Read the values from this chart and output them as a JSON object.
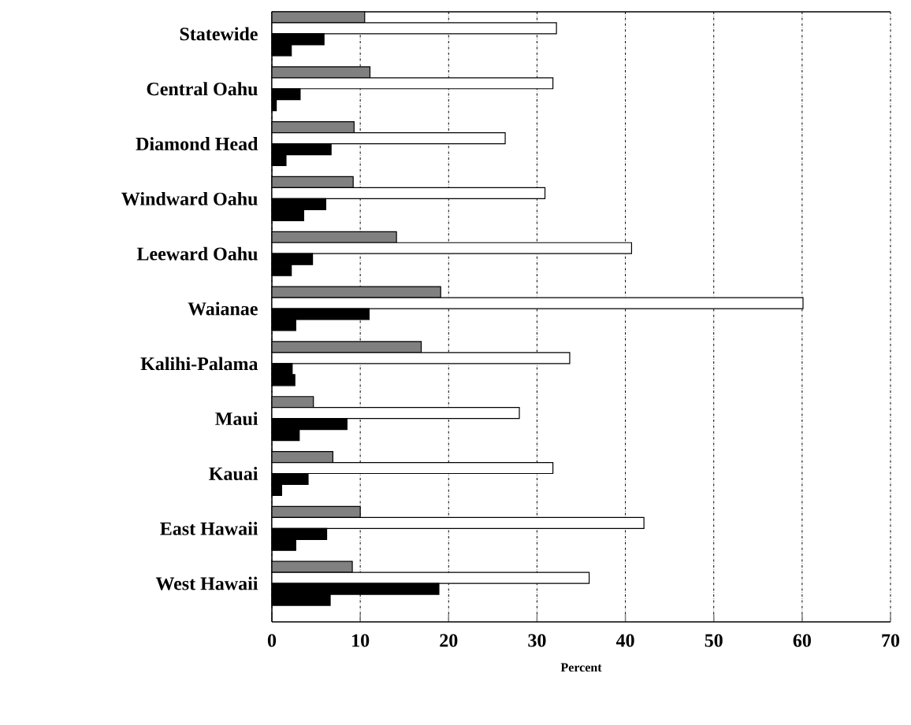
{
  "chart_data": {
    "type": "bar",
    "orientation": "horizontal",
    "xlabel": "Percent",
    "categories": [
      "Statewide",
      "Central Oahu",
      "Diamond Head",
      "Windward Oahu",
      "Leeward Oahu",
      "Waianae",
      "Kalihi-Palama",
      "Maui",
      "Kauai",
      "East Hawaii",
      "West Hawaii"
    ],
    "series": [
      {
        "color": "#808080",
        "values": [
          10.5,
          11.1,
          9.3,
          9.2,
          14.1,
          19.1,
          16.9,
          4.7,
          6.9,
          10.0,
          9.1
        ]
      },
      {
        "color": "#ffffff",
        "values": [
          32.2,
          31.8,
          26.4,
          30.9,
          40.7,
          60.1,
          33.7,
          28.0,
          31.8,
          42.1,
          35.9
        ]
      },
      {
        "color": "#000000",
        "values": [
          5.9,
          3.2,
          6.7,
          6.1,
          4.6,
          11.0,
          2.3,
          8.5,
          4.1,
          6.2,
          18.9
        ]
      },
      {
        "color": "#000000",
        "values": [
          2.2,
          0.5,
          1.6,
          3.6,
          2.2,
          2.7,
          2.6,
          3.1,
          1.1,
          2.7,
          6.6
        ]
      }
    ],
    "xlim": [
      0,
      70
    ],
    "xticks": [
      0,
      10,
      20,
      30,
      40,
      50,
      60,
      70
    ],
    "grid": "x"
  }
}
